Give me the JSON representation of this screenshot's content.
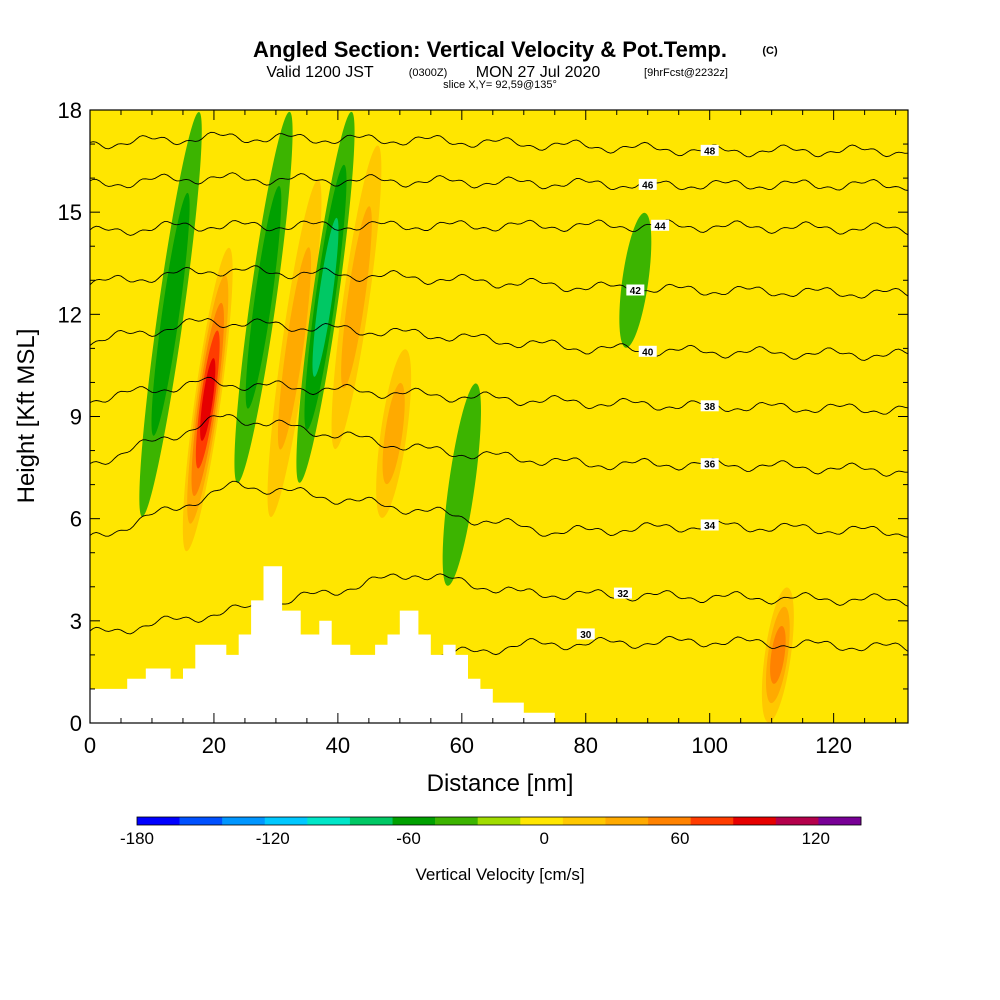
{
  "header": {
    "title": "Angled Section: Vertical Velocity & Pot.Temp.",
    "title_mark": "(C)",
    "valid_a": "Valid 1200 JST",
    "valid_b": "(0300Z)",
    "valid_c": "MON 27 Jul 2020",
    "valid_d": "[9hrFcst@2232z]",
    "slice": "slice X,Y= 92,59@135°"
  },
  "chart_data": {
    "type": "heatmap",
    "xlabel": "Distance [nm]",
    "ylabel": "Height [Kft MSL]",
    "xlim": [
      0,
      132
    ],
    "ylim": [
      0,
      18
    ],
    "xticks": [
      0,
      20,
      40,
      60,
      80,
      100,
      120
    ],
    "yticks": [
      0,
      3,
      6,
      9,
      12,
      15,
      18
    ],
    "colorbar": {
      "label": "Vertical Velocity [cm/s]",
      "range": [
        -180,
        140
      ],
      "step": 20,
      "ticks": [
        -180,
        -120,
        -60,
        0,
        60,
        120
      ],
      "colors": [
        "#0000ff",
        "#0050ff",
        "#0096ff",
        "#00c8ff",
        "#00e6c8",
        "#00c864",
        "#00a000",
        "#3cb400",
        "#a0dc00",
        "#ffe600",
        "#ffc800",
        "#ffaa00",
        "#ff8200",
        "#ff3c00",
        "#e60000",
        "#b4004b",
        "#780096"
      ]
    },
    "vertical_velocity_features": [
      {
        "x": 13,
        "y": [
          6,
          18
        ],
        "w": -50
      },
      {
        "x": 19,
        "y": [
          5,
          14
        ],
        "w": 110
      },
      {
        "x": 28,
        "y": [
          7,
          18
        ],
        "w": -40
      },
      {
        "x": 33,
        "y": [
          6,
          16
        ],
        "w": 40
      },
      {
        "x": 38,
        "y": [
          7,
          18
        ],
        "w": -60
      },
      {
        "x": 43,
        "y": [
          8,
          17
        ],
        "w": 50
      },
      {
        "x": 49,
        "y": [
          6,
          11
        ],
        "w": 40
      },
      {
        "x": 60,
        "y": [
          4,
          10
        ],
        "w": -30
      },
      {
        "x": 88,
        "y": [
          11,
          15
        ],
        "w": -30
      },
      {
        "x": 111,
        "y": [
          0,
          4
        ],
        "w": 60
      }
    ],
    "theta_contours": [
      {
        "label": "30",
        "label_at": [
          80,
          2.6
        ],
        "y": [
          [
            0,
            0.6
          ],
          [
            20,
            1.2
          ],
          [
            50,
            1.8
          ],
          [
            70,
            2.3
          ],
          [
            100,
            2.4
          ],
          [
            132,
            2.2
          ]
        ]
      },
      {
        "label": "32",
        "label_at": [
          86,
          3.8
        ],
        "y": [
          [
            0,
            2.6
          ],
          [
            30,
            3.5
          ],
          [
            52,
            4.4
          ],
          [
            70,
            3.8
          ],
          [
            100,
            3.7
          ],
          [
            132,
            3.6
          ]
        ]
      },
      {
        "label": "34",
        "label_at": [
          100,
          5.8
        ],
        "y": [
          [
            0,
            5.4
          ],
          [
            24,
            7.0
          ],
          [
            55,
            6.2
          ],
          [
            75,
            5.6
          ],
          [
            100,
            5.8
          ],
          [
            132,
            5.6
          ]
        ]
      },
      {
        "label": "36",
        "label_at": [
          100,
          7.6
        ],
        "y": [
          [
            0,
            7.6
          ],
          [
            22,
            9.0
          ],
          [
            55,
            8.0
          ],
          [
            80,
            7.6
          ],
          [
            100,
            7.6
          ],
          [
            132,
            7.4
          ]
        ]
      },
      {
        "label": "38",
        "label_at": [
          100,
          9.3
        ],
        "y": [
          [
            0,
            9.5
          ],
          [
            18,
            10.0
          ],
          [
            58,
            9.6
          ],
          [
            80,
            9.4
          ],
          [
            100,
            9.3
          ],
          [
            132,
            9.2
          ]
        ]
      },
      {
        "label": "40",
        "label_at": [
          90,
          10.9
        ],
        "y": [
          [
            0,
            11.2
          ],
          [
            19,
            11.8
          ],
          [
            55,
            11.4
          ],
          [
            80,
            11.0
          ],
          [
            100,
            10.9
          ],
          [
            132,
            10.8
          ]
        ]
      },
      {
        "label": "42",
        "label_at": [
          88,
          12.7
        ],
        "y": [
          [
            0,
            12.9
          ],
          [
            20,
            13.3
          ],
          [
            50,
            13.1
          ],
          [
            80,
            12.8
          ],
          [
            100,
            12.7
          ],
          [
            132,
            12.6
          ]
        ]
      },
      {
        "label": "44",
        "label_at": [
          92,
          14.6
        ],
        "y": [
          [
            0,
            14.4
          ],
          [
            15,
            14.6
          ],
          [
            56,
            14.6
          ],
          [
            92,
            14.6
          ],
          [
            132,
            14.5
          ]
        ]
      },
      {
        "label": "46",
        "label_at": [
          90,
          15.8
        ],
        "y": [
          [
            0,
            15.8
          ],
          [
            16,
            16.0
          ],
          [
            56,
            15.9
          ],
          [
            90,
            15.8
          ],
          [
            132,
            15.8
          ]
        ]
      },
      {
        "label": "48",
        "label_at": [
          100,
          16.8
        ],
        "y": [
          [
            0,
            17.0
          ],
          [
            20,
            17.2
          ],
          [
            56,
            17.1
          ],
          [
            100,
            16.8
          ],
          [
            132,
            16.8
          ]
        ]
      }
    ],
    "terrain": [
      [
        0,
        1
      ],
      [
        6,
        1
      ],
      [
        6,
        1.3
      ],
      [
        9,
        1.3
      ],
      [
        9,
        1.6
      ],
      [
        13,
        1.6
      ],
      [
        13,
        1.3
      ],
      [
        15,
        1.3
      ],
      [
        15,
        1.6
      ],
      [
        17,
        1.6
      ],
      [
        17,
        2.3
      ],
      [
        22,
        2.3
      ],
      [
        22,
        2.0
      ],
      [
        24,
        2.0
      ],
      [
        24,
        2.6
      ],
      [
        26,
        2.6
      ],
      [
        26,
        3.6
      ],
      [
        28,
        3.6
      ],
      [
        28,
        4.6
      ],
      [
        31,
        4.6
      ],
      [
        31,
        3.3
      ],
      [
        34,
        3.3
      ],
      [
        34,
        2.6
      ],
      [
        37,
        2.6
      ],
      [
        37,
        3.0
      ],
      [
        39,
        3.0
      ],
      [
        39,
        2.3
      ],
      [
        42,
        2.3
      ],
      [
        42,
        2.0
      ],
      [
        46,
        2.0
      ],
      [
        46,
        2.3
      ],
      [
        48,
        2.3
      ],
      [
        48,
        2.6
      ],
      [
        50,
        2.6
      ],
      [
        50,
        3.3
      ],
      [
        53,
        3.3
      ],
      [
        53,
        2.6
      ],
      [
        55,
        2.6
      ],
      [
        55,
        2.0
      ],
      [
        57,
        2.0
      ],
      [
        57,
        2.3
      ],
      [
        59,
        2.3
      ],
      [
        59,
        2.0
      ],
      [
        61,
        2.0
      ],
      [
        61,
        1.3
      ],
      [
        63,
        1.3
      ],
      [
        63,
        1.0
      ],
      [
        65,
        1.0
      ],
      [
        65,
        0.6
      ],
      [
        70,
        0.6
      ],
      [
        70,
        0.3
      ],
      [
        75,
        0.3
      ],
      [
        75,
        0
      ],
      [
        132,
        0
      ]
    ]
  }
}
